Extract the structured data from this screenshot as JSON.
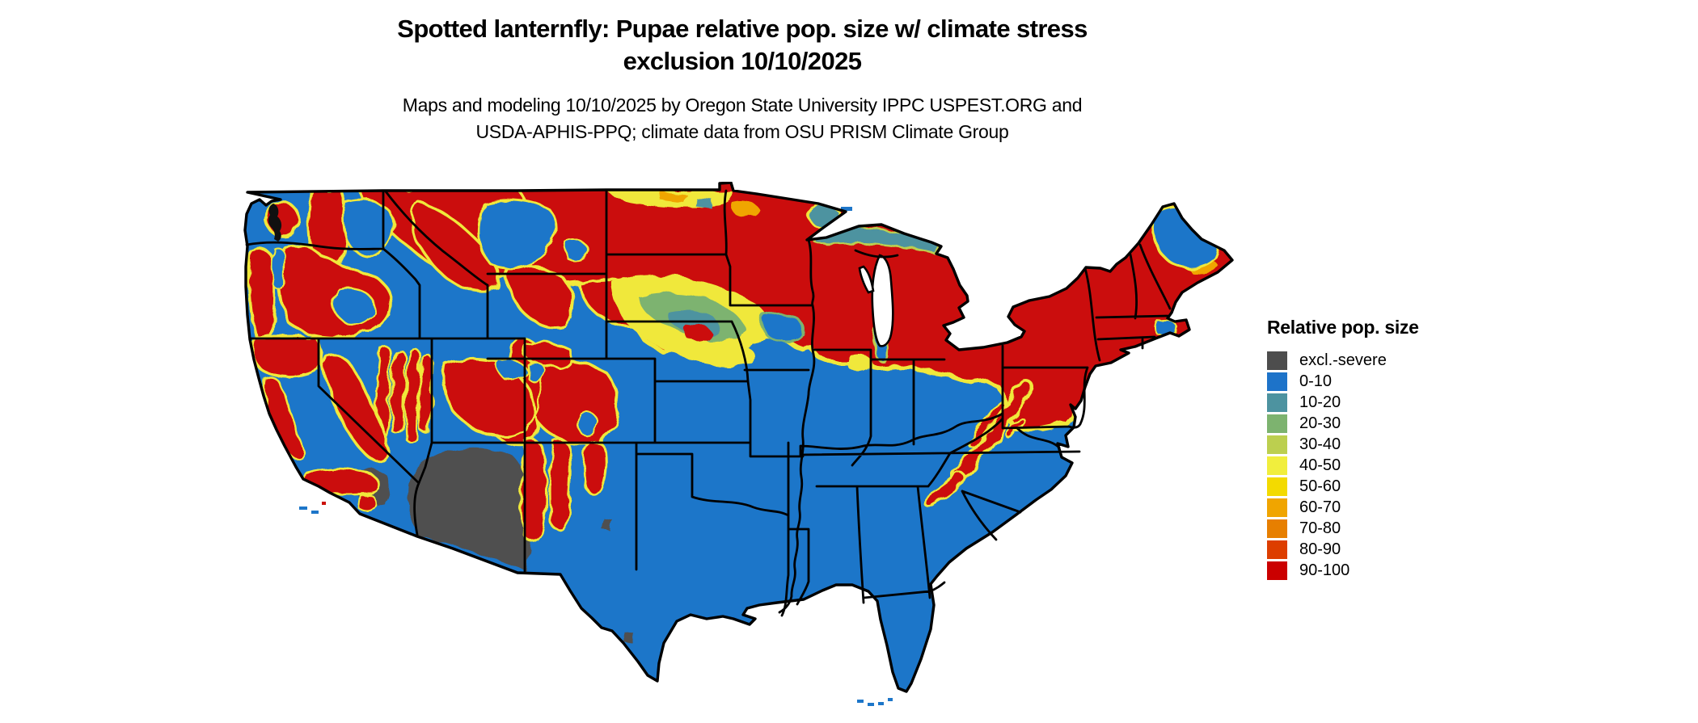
{
  "header": {
    "title_line1": "Spotted lanternfly: Pupae relative pop. size w/ climate stress",
    "title_line2": "exclusion 10/10/2025",
    "subtitle_line1": "Maps and modeling 10/10/2025 by Oregon State University IPPC USPEST.ORG and",
    "subtitle_line2": "USDA-APHIS-PPQ; climate data from OSU PRISM Climate Group"
  },
  "legend": {
    "title": "Relative pop. size",
    "items": [
      {
        "label": "excl.-severe",
        "color": "#4d4d4d"
      },
      {
        "label": "0-10",
        "color": "#1d73c9"
      },
      {
        "label": "10-20",
        "color": "#4d93a0"
      },
      {
        "label": "20-30",
        "color": "#7db36f"
      },
      {
        "label": "30-40",
        "color": "#bccf4f"
      },
      {
        "label": "40-50",
        "color": "#f1ee3d"
      },
      {
        "label": "50-60",
        "color": "#f3da00"
      },
      {
        "label": "60-70",
        "color": "#f0a500"
      },
      {
        "label": "70-80",
        "color": "#e77f00"
      },
      {
        "label": "80-90",
        "color": "#dd3e00"
      },
      {
        "label": "90-100",
        "color": "#cb0000"
      }
    ]
  },
  "colors": {
    "blue": "#1d76c9",
    "teal": "#4d93a0",
    "green": "#7db36f",
    "yelgreen": "#bccf4f",
    "yellow": "#f0e83b",
    "gold": "#f3da00",
    "orange": "#f0a500",
    "dkorange": "#e77f00",
    "redorange": "#dd3e00",
    "red": "#cb1008",
    "gray": "#4f4f4f",
    "outline": "#000000",
    "background": "#ffffff"
  },
  "map": {
    "kind": "CONUS raster choropleth, relative population size 0-100 plus exclusion class",
    "high_value_regions": "Mountain West ranges, northern plains, upper Midwest, northern Great Lakes, interior Northeast, Appalachian ridges",
    "low_value_regions": "South, Southeast, Texas, lower Midwest, Pacific coast valleys, northern Maine",
    "excluded_regions": "southern Arizona desert and southeastern California desert"
  }
}
